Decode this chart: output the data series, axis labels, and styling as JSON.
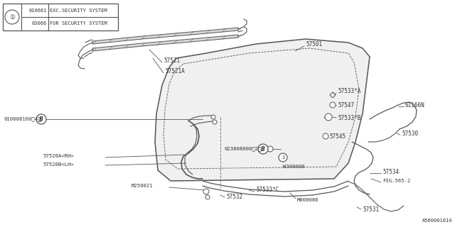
{
  "bg_color": "#ffffff",
  "line_color": "#555555",
  "text_color": "#333333",
  "diagram_code": "A560001014",
  "legend": [
    {
      "code": "610661",
      "desc": "EXC.SECURITY SYSTEM"
    },
    {
      "code": "63066",
      "desc": "FOR SECURITY SYSTEM"
    }
  ]
}
